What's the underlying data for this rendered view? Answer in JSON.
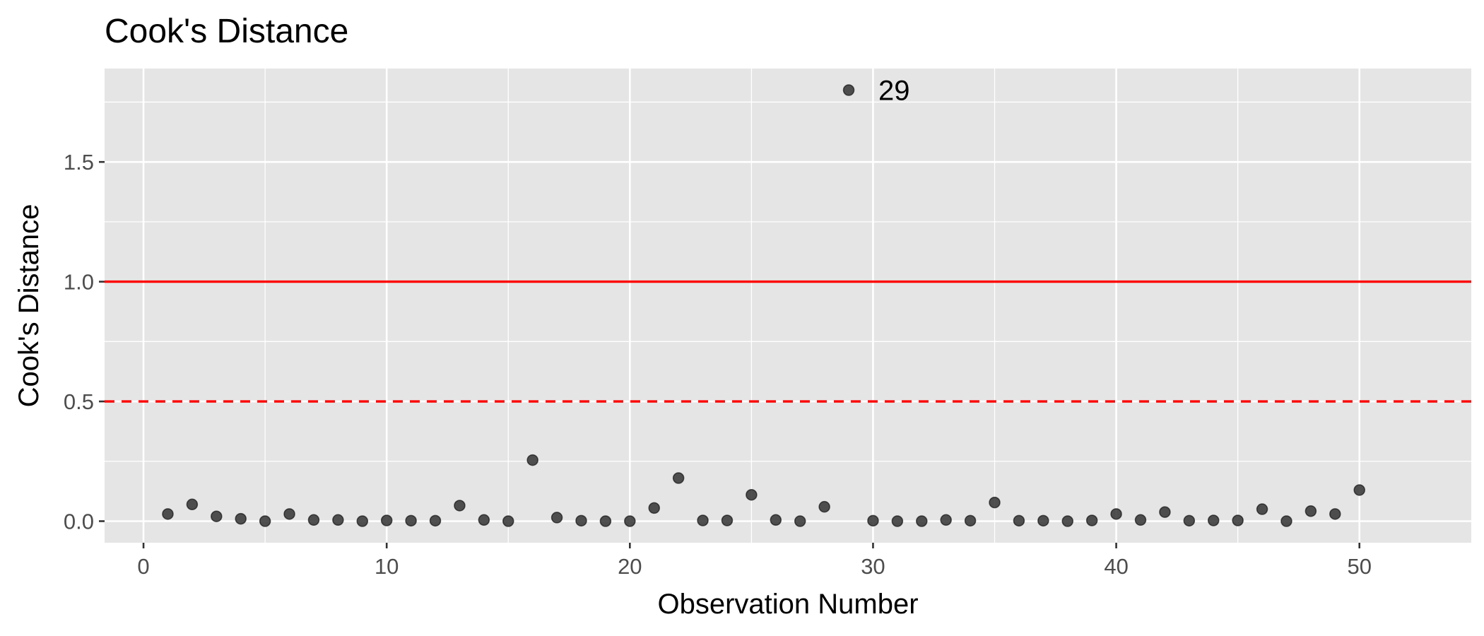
{
  "chart_data": {
    "type": "scatter",
    "title": "Cook's Distance",
    "xlabel": "Observation Number",
    "ylabel": "Cook's Distance",
    "xlim": [
      -1.6,
      54.6
    ],
    "ylim": [
      -0.09,
      1.89
    ],
    "xticks": [
      0,
      10,
      20,
      30,
      40,
      50
    ],
    "xtick_labels": [
      "0",
      "10",
      "20",
      "30",
      "40",
      "50"
    ],
    "yticks": [
      0,
      0.5,
      1,
      1.5
    ],
    "ytick_labels": [
      "0.0",
      "0.5",
      "1.0",
      "1.5"
    ],
    "grid": true,
    "x": [
      1,
      2,
      3,
      4,
      5,
      6,
      7,
      8,
      9,
      10,
      11,
      12,
      13,
      14,
      15,
      16,
      17,
      18,
      19,
      20,
      21,
      22,
      23,
      24,
      25,
      26,
      27,
      28,
      29,
      30,
      31,
      32,
      33,
      34,
      35,
      36,
      37,
      38,
      39,
      40,
      41,
      42,
      43,
      44,
      45,
      46,
      47,
      48,
      49,
      50
    ],
    "y": [
      0.03,
      0.07,
      0.02,
      0.01,
      0.0,
      0.03,
      0.005,
      0.005,
      0.0,
      0.003,
      0.002,
      0.002,
      0.065,
      0.005,
      0.0,
      0.255,
      0.015,
      0.002,
      0.0,
      0.0,
      0.055,
      0.18,
      0.003,
      0.003,
      0.11,
      0.005,
      0.0,
      0.06,
      1.8,
      0.002,
      0.0,
      0.0,
      0.005,
      0.002,
      0.078,
      0.002,
      0.002,
      0.0,
      0.003,
      0.03,
      0.005,
      0.038,
      0.002,
      0.003,
      0.003,
      0.05,
      0.0,
      0.042,
      0.03,
      0.13
    ],
    "point_color": "#333333",
    "labels": [
      {
        "x": 29,
        "y": 1.8,
        "text": "29"
      }
    ],
    "reference_lines": [
      {
        "y": 1.0,
        "style": "solid",
        "color": "#ff0000"
      },
      {
        "y": 0.5,
        "style": "dashed",
        "color": "#ff0000"
      }
    ],
    "panel_color": "#e5e5e5",
    "grid_color": "#ffffff"
  }
}
